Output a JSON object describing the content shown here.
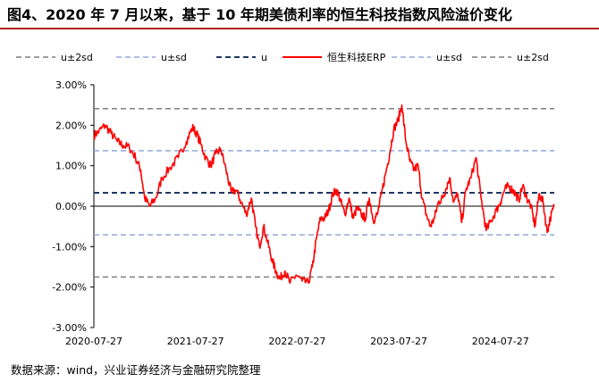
{
  "title": "图4、2020 年 7 月以来，基于 10 年期美债利率的恒生科技指数风险溢价变化",
  "source": "数据来源：wind，兴业证券经济与金融研究院整理",
  "colors": {
    "title_rule": "#b01f24",
    "erp": "#ff0000",
    "mean": "#1f3864",
    "sd1": "#8eaadb",
    "sd2": "#7f7f7f"
  },
  "chart_data": {
    "type": "line",
    "title": "",
    "xlabel": "",
    "ylabel": "",
    "ylim": [
      -3.0,
      3.0
    ],
    "y_unit": "%",
    "y_ticks": [
      "3.00%",
      "2.00%",
      "1.00%",
      "0.00%",
      "-1.00%",
      "-2.00%",
      "-3.00%"
    ],
    "x_ticks": [
      "2020-07-27",
      "2021-07-27",
      "2022-07-27",
      "2023-07-27",
      "2024-07-27"
    ],
    "x_range_years": [
      2020.57,
      2025.1
    ],
    "legend": [
      "u±2sd",
      "u±sd",
      "u",
      "恒生科技ERP",
      "u±sd",
      "u±2sd"
    ],
    "reference_lines": {
      "mean": 0.33,
      "plus_1sd": 1.37,
      "minus_1sd": -0.71,
      "plus_2sd": 2.41,
      "minus_2sd": -1.75
    },
    "series": [
      {
        "name": "恒生科技ERP",
        "x_years": [
          2020.57,
          2020.62,
          2020.68,
          2020.74,
          2020.8,
          2020.86,
          2020.92,
          2020.98,
          2021.03,
          2021.07,
          2021.12,
          2021.18,
          2021.24,
          2021.32,
          2021.4,
          2021.48,
          2021.54,
          2021.58,
          2021.62,
          2021.67,
          2021.72,
          2021.77,
          2021.82,
          2021.87,
          2021.92,
          2021.97,
          2022.02,
          2022.07,
          2022.12,
          2022.16,
          2022.2,
          2022.24,
          2022.28,
          2022.32,
          2022.36,
          2022.4,
          2022.45,
          2022.5,
          2022.56,
          2022.62,
          2022.68,
          2022.72,
          2022.76,
          2022.8,
          2022.84,
          2022.88,
          2022.92,
          2022.96,
          2023.0,
          2023.04,
          2023.08,
          2023.12,
          2023.16,
          2023.2,
          2023.24,
          2023.28,
          2023.32,
          2023.36,
          2023.4,
          2023.44,
          2023.48,
          2023.52,
          2023.56,
          2023.6,
          2023.64,
          2023.68,
          2023.72,
          2023.76,
          2023.8,
          2023.84,
          2023.88,
          2023.92,
          2023.96,
          2024.0,
          2024.03,
          2024.07,
          2024.11,
          2024.15,
          2024.19,
          2024.23,
          2024.28,
          2024.33,
          2024.38,
          2024.43,
          2024.48,
          2024.53,
          2024.57,
          2024.61,
          2024.65,
          2024.69,
          2024.72,
          2024.75,
          2024.79,
          2024.83,
          2024.87,
          2024.91,
          2024.95,
          2024.99,
          2025.03,
          2025.06,
          2025.1
        ],
        "values": [
          1.75,
          1.85,
          2.0,
          1.8,
          1.6,
          1.5,
          1.45,
          1.2,
          0.9,
          0.2,
          0.0,
          0.2,
          0.7,
          0.95,
          1.2,
          1.6,
          1.95,
          1.8,
          1.55,
          1.2,
          1.0,
          1.3,
          1.4,
          0.9,
          0.35,
          0.4,
          0.1,
          -0.2,
          0.2,
          -0.5,
          -1.0,
          -0.5,
          -0.9,
          -1.3,
          -1.6,
          -1.8,
          -1.6,
          -1.9,
          -1.7,
          -1.85,
          -1.9,
          -1.5,
          -0.8,
          -0.3,
          -0.3,
          -0.1,
          0.3,
          0.4,
          0.1,
          -0.2,
          0.2,
          -0.3,
          -0.05,
          -0.2,
          -0.3,
          0.2,
          -0.35,
          -0.2,
          0.3,
          0.8,
          1.3,
          1.9,
          2.1,
          2.5,
          1.6,
          1.1,
          0.9,
          1.0,
          0.2,
          -0.2,
          -0.5,
          -0.3,
          0.1,
          0.2,
          0.4,
          0.7,
          0.1,
          0.3,
          -0.4,
          0.4,
          0.7,
          1.2,
          0.2,
          -0.6,
          -0.35,
          -0.1,
          0.1,
          0.4,
          0.5,
          0.4,
          0.3,
          0.15,
          0.5,
          0.2,
          0.0,
          -0.5,
          0.3,
          0.1,
          -0.65,
          -0.3,
          0.0
        ]
      }
    ]
  }
}
